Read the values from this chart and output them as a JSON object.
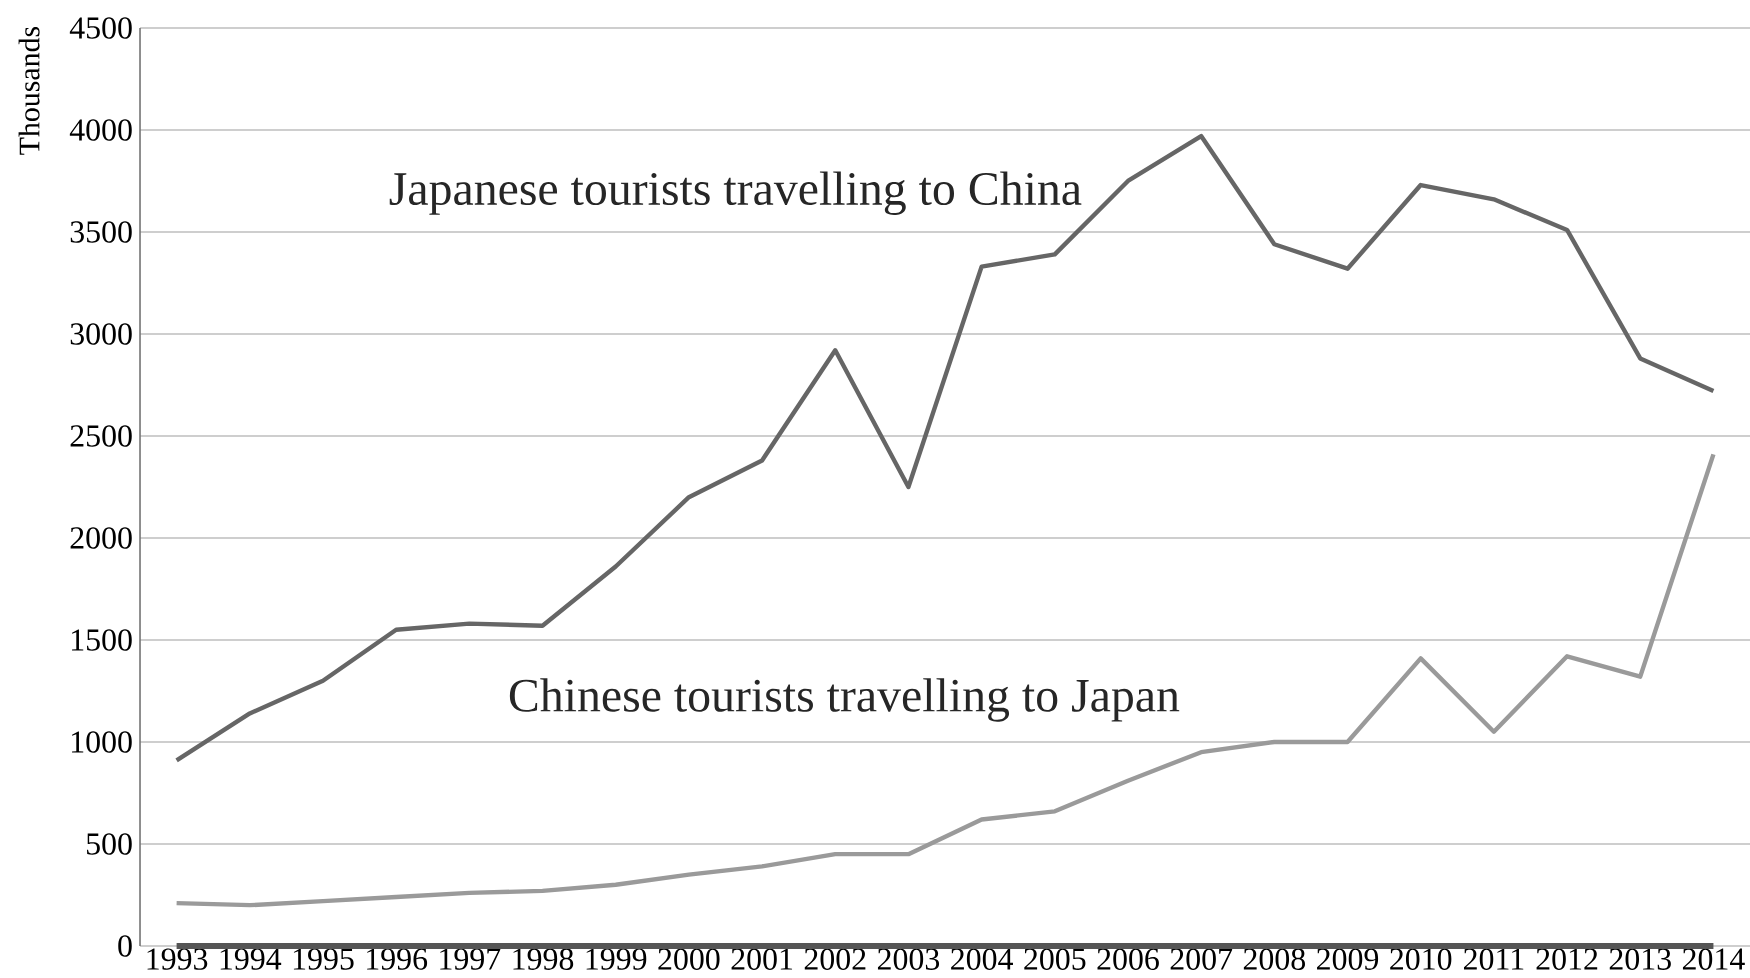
{
  "chart_data": {
    "type": "line",
    "ylabel": "Thousands",
    "categories": [
      "1993",
      "1994",
      "1995",
      "1996",
      "1997",
      "1998",
      "1999",
      "2000",
      "2001",
      "2002",
      "2003",
      "2004",
      "2005",
      "2006",
      "2007",
      "2008",
      "2009",
      "2010",
      "2011",
      "2012",
      "2013",
      "2014"
    ],
    "series": [
      {
        "name": "Japanese tourists travelling to China",
        "color": "#666666",
        "values": [
          910,
          1140,
          1300,
          1550,
          1580,
          1570,
          1860,
          2200,
          2380,
          2920,
          2250,
          3330,
          3390,
          3750,
          3970,
          3440,
          3320,
          3730,
          3660,
          3510,
          2880,
          2720
        ]
      },
      {
        "name": "Chinese tourists travelling to Japan",
        "color": "#9a9a9a",
        "values": [
          210,
          200,
          220,
          240,
          260,
          270,
          300,
          350,
          390,
          450,
          450,
          620,
          660,
          810,
          950,
          1000,
          1000,
          1410,
          1050,
          1420,
          1320,
          2410
        ]
      },
      {
        "color": "#555555",
        "values": [
          0,
          0,
          0,
          0,
          0,
          0,
          0,
          0,
          0,
          0,
          0,
          0,
          0,
          0,
          0,
          0,
          0,
          0,
          0,
          0,
          0,
          0
        ]
      }
    ],
    "ylim": [
      0,
      4500
    ],
    "yticks": [
      0,
      500,
      1000,
      1500,
      2000,
      2500,
      3000,
      3500,
      4000,
      4500
    ],
    "grid": "y",
    "legend": false,
    "marker": "none",
    "line_style": "solid"
  }
}
